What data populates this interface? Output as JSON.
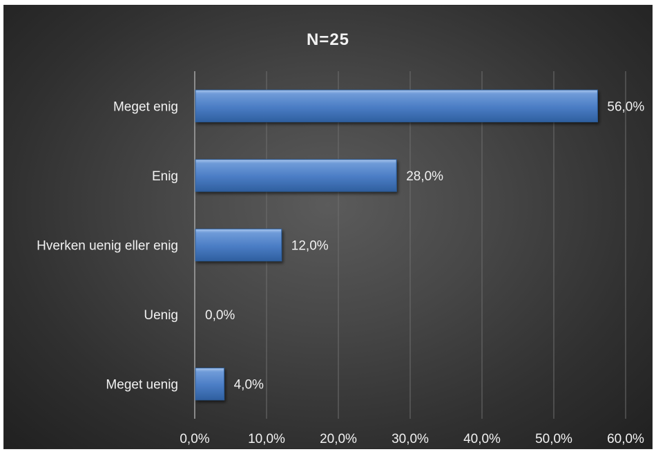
{
  "chart_data": {
    "type": "bar",
    "orientation": "horizontal",
    "title": "N=25",
    "categories": [
      "Meget enig",
      "Enig",
      "Hverken uenig eller enig",
      "Uenig",
      "Meget uenig"
    ],
    "values": [
      56.0,
      28.0,
      12.0,
      0.0,
      4.0
    ],
    "data_labels": [
      "56,0%",
      "28,0%",
      "12,0%",
      "0,0%",
      "4,0%"
    ],
    "xlim": [
      0,
      60
    ],
    "x_ticks": [
      0,
      10,
      20,
      30,
      40,
      50,
      60
    ],
    "x_tick_labels": [
      "0,0%",
      "10,0%",
      "20,0%",
      "30,0%",
      "40,0%",
      "50,0%",
      "60,0%"
    ],
    "xlabel": "",
    "ylabel": "",
    "grid": true,
    "legend": "none",
    "bar_color": "#4f81bd",
    "background_color": "#3a3a3a"
  }
}
